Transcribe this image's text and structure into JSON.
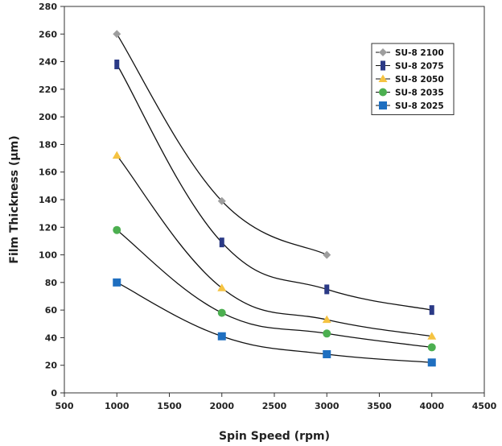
{
  "chart_data": {
    "type": "line",
    "title": "",
    "xlabel": "Spin Speed (rpm)",
    "ylabel": "Film Thickness (µm)",
    "xlim": [
      500,
      4500
    ],
    "ylim": [
      0,
      280
    ],
    "x_ticks": [
      500,
      1000,
      1500,
      2000,
      2500,
      3000,
      3500,
      4000,
      4500
    ],
    "y_ticks": [
      0,
      20,
      40,
      60,
      80,
      100,
      120,
      140,
      160,
      180,
      200,
      220,
      240,
      260,
      280
    ],
    "grid": false,
    "legend_position": "top-right",
    "series": [
      {
        "name": "SU-8 2100",
        "marker": "diamond",
        "color": "#9e9e9e",
        "x": [
          1000,
          2000,
          3000
        ],
        "y": [
          260,
          139,
          100
        ]
      },
      {
        "name": "SU-8 2075",
        "marker": "bar",
        "color": "#2b3a86",
        "x": [
          1000,
          2000,
          3000,
          4000
        ],
        "y": [
          238,
          109,
          75,
          60
        ]
      },
      {
        "name": "SU-8 2050",
        "marker": "triangle",
        "color": "#f5c342",
        "x": [
          1000,
          2000,
          3000,
          4000
        ],
        "y": [
          172,
          76,
          53,
          41
        ]
      },
      {
        "name": "SU-8 2035",
        "marker": "circle",
        "color": "#4caf50",
        "x": [
          1000,
          2000,
          3000,
          4000
        ],
        "y": [
          118,
          58,
          43,
          33
        ]
      },
      {
        "name": "SU-8 2025",
        "marker": "square",
        "color": "#1f6fc0",
        "x": [
          1000,
          2000,
          3000,
          4000
        ],
        "y": [
          80,
          41,
          28,
          22
        ]
      }
    ]
  }
}
